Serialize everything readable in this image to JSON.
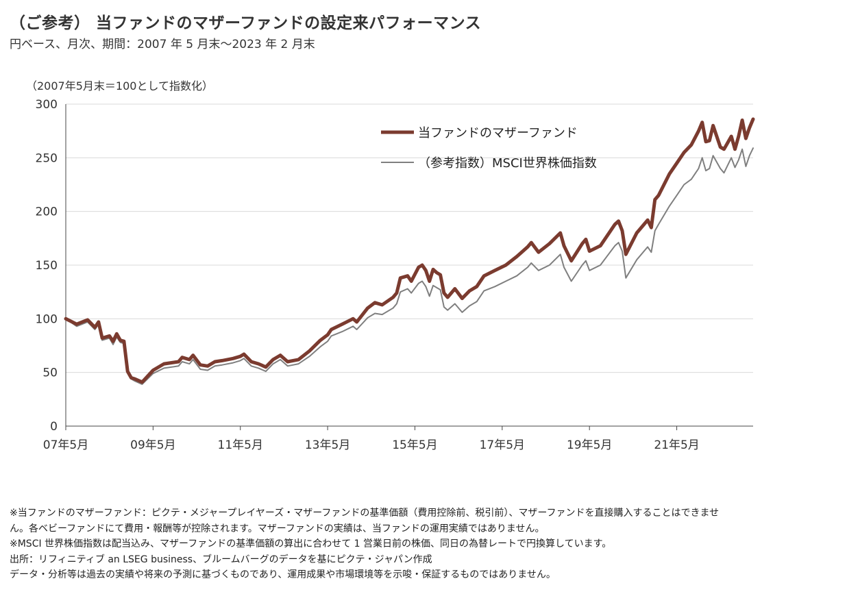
{
  "header": {
    "title": "（ご参考） 当ファンドのマザーファンドの設定来パフォーマンス",
    "subtitle": "円ベース、月次、期間：2007 年 5 月末～2023 年 2 月末"
  },
  "chart_data": {
    "type": "line",
    "unit_label": "（2007年5月末＝100として指数化）",
    "ylim": [
      0,
      300
    ],
    "y_ticks": [
      "0",
      "50",
      "100",
      "150",
      "200",
      "250",
      "300"
    ],
    "x_range": [
      "2007-05",
      "2023-02"
    ],
    "x_ticks": [
      {
        "label": "07年5月",
        "date": "2007-05"
      },
      {
        "label": "09年5月",
        "date": "2009-05"
      },
      {
        "label": "11年5月",
        "date": "2011-05"
      },
      {
        "label": "13年5月",
        "date": "2013-05"
      },
      {
        "label": "15年5月",
        "date": "2015-05"
      },
      {
        "label": "17年5月",
        "date": "2017-05"
      },
      {
        "label": "19年5月",
        "date": "2019-05"
      },
      {
        "label": "21年5月",
        "date": "2021-05"
      }
    ],
    "grid": {
      "horizontal": true,
      "vertical": false
    },
    "legend_position": "top-right",
    "series": [
      {
        "name": "当ファンドのマザーファンド",
        "color": "#7b3b2f",
        "points": [
          [
            "2007-05",
            100
          ],
          [
            "2007-08",
            95
          ],
          [
            "2007-11",
            99
          ],
          [
            "2008-01",
            92
          ],
          [
            "2008-02",
            97
          ],
          [
            "2008-03",
            82
          ],
          [
            "2008-05",
            84
          ],
          [
            "2008-06",
            79
          ],
          [
            "2008-07",
            86
          ],
          [
            "2008-08",
            80
          ],
          [
            "2008-09",
            79
          ],
          [
            "2008-10",
            51
          ],
          [
            "2008-11",
            45
          ],
          [
            "2008-12",
            44
          ],
          [
            "2009-02",
            41
          ],
          [
            "2009-05",
            52
          ],
          [
            "2009-08",
            58
          ],
          [
            "2009-12",
            60
          ],
          [
            "2010-01",
            64
          ],
          [
            "2010-03",
            62
          ],
          [
            "2010-04",
            66
          ],
          [
            "2010-06",
            57
          ],
          [
            "2010-08",
            56
          ],
          [
            "2010-10",
            60
          ],
          [
            "2010-12",
            61
          ],
          [
            "2011-03",
            63
          ],
          [
            "2011-05",
            65
          ],
          [
            "2011-06",
            67
          ],
          [
            "2011-08",
            60
          ],
          [
            "2011-10",
            58
          ],
          [
            "2011-12",
            55
          ],
          [
            "2012-02",
            62
          ],
          [
            "2012-04",
            66
          ],
          [
            "2012-06",
            60
          ],
          [
            "2012-09",
            62
          ],
          [
            "2012-12",
            70
          ],
          [
            "2013-03",
            80
          ],
          [
            "2013-05",
            85
          ],
          [
            "2013-06",
            90
          ],
          [
            "2013-09",
            95
          ],
          [
            "2013-12",
            100
          ],
          [
            "2014-01",
            97
          ],
          [
            "2014-04",
            110
          ],
          [
            "2014-06",
            115
          ],
          [
            "2014-08",
            113
          ],
          [
            "2014-11",
            120
          ],
          [
            "2014-12",
            124
          ],
          [
            "2015-01",
            138
          ],
          [
            "2015-03",
            140
          ],
          [
            "2015-04",
            135
          ],
          [
            "2015-06",
            148
          ],
          [
            "2015-07",
            150
          ],
          [
            "2015-08",
            145
          ],
          [
            "2015-09",
            135
          ],
          [
            "2015-10",
            146
          ],
          [
            "2015-11",
            143
          ],
          [
            "2015-12",
            141
          ],
          [
            "2016-01",
            124
          ],
          [
            "2016-02",
            120
          ],
          [
            "2016-04",
            128
          ],
          [
            "2016-06",
            119
          ],
          [
            "2016-08",
            126
          ],
          [
            "2016-10",
            130
          ],
          [
            "2016-12",
            140
          ],
          [
            "2017-03",
            145
          ],
          [
            "2017-06",
            150
          ],
          [
            "2017-09",
            158
          ],
          [
            "2017-12",
            167
          ],
          [
            "2018-01",
            171
          ],
          [
            "2018-03",
            162
          ],
          [
            "2018-06",
            170
          ],
          [
            "2018-09",
            180
          ],
          [
            "2018-10",
            168
          ],
          [
            "2018-12",
            154
          ],
          [
            "2019-03",
            170
          ],
          [
            "2019-04",
            174
          ],
          [
            "2019-05",
            163
          ],
          [
            "2019-08",
            168
          ],
          [
            "2019-12",
            188
          ],
          [
            "2020-01",
            191
          ],
          [
            "2020-02",
            182
          ],
          [
            "2020-03",
            160
          ],
          [
            "2020-06",
            180
          ],
          [
            "2020-09",
            192
          ],
          [
            "2020-10",
            185
          ],
          [
            "2020-11",
            211
          ],
          [
            "2020-12",
            215
          ],
          [
            "2021-03",
            235
          ],
          [
            "2021-05",
            245
          ],
          [
            "2021-07",
            255
          ],
          [
            "2021-09",
            262
          ],
          [
            "2021-11",
            275
          ],
          [
            "2021-12",
            283
          ],
          [
            "2022-01",
            265
          ],
          [
            "2022-02",
            266
          ],
          [
            "2022-03",
            280
          ],
          [
            "2022-05",
            260
          ],
          [
            "2022-06",
            258
          ],
          [
            "2022-08",
            270
          ],
          [
            "2022-09",
            258
          ],
          [
            "2022-10",
            270
          ],
          [
            "2022-11",
            285
          ],
          [
            "2022-12",
            268
          ],
          [
            "2023-01",
            278
          ],
          [
            "2023-02",
            286
          ]
        ]
      },
      {
        "name": "（参考指数）MSCI世界株価指数",
        "color": "#7f7f7f",
        "points": [
          [
            "2007-05",
            100
          ],
          [
            "2007-08",
            93
          ],
          [
            "2007-11",
            97
          ],
          [
            "2008-01",
            90
          ],
          [
            "2008-02",
            95
          ],
          [
            "2008-03",
            80
          ],
          [
            "2008-05",
            82
          ],
          [
            "2008-06",
            76
          ],
          [
            "2008-07",
            83
          ],
          [
            "2008-08",
            78
          ],
          [
            "2008-09",
            77
          ],
          [
            "2008-10",
            50
          ],
          [
            "2008-11",
            44
          ],
          [
            "2008-12",
            42
          ],
          [
            "2009-02",
            39
          ],
          [
            "2009-05",
            49
          ],
          [
            "2009-08",
            54
          ],
          [
            "2009-12",
            56
          ],
          [
            "2010-01",
            60
          ],
          [
            "2010-03",
            58
          ],
          [
            "2010-04",
            62
          ],
          [
            "2010-06",
            53
          ],
          [
            "2010-08",
            52
          ],
          [
            "2010-10",
            56
          ],
          [
            "2010-12",
            57
          ],
          [
            "2011-03",
            59
          ],
          [
            "2011-05",
            61
          ],
          [
            "2011-06",
            63
          ],
          [
            "2011-08",
            56
          ],
          [
            "2011-10",
            54
          ],
          [
            "2011-12",
            51
          ],
          [
            "2012-02",
            58
          ],
          [
            "2012-04",
            62
          ],
          [
            "2012-06",
            56
          ],
          [
            "2012-09",
            58
          ],
          [
            "2012-12",
            65
          ],
          [
            "2013-03",
            74
          ],
          [
            "2013-05",
            79
          ],
          [
            "2013-06",
            84
          ],
          [
            "2013-09",
            88
          ],
          [
            "2013-12",
            93
          ],
          [
            "2014-01",
            90
          ],
          [
            "2014-04",
            101
          ],
          [
            "2014-06",
            105
          ],
          [
            "2014-08",
            104
          ],
          [
            "2014-11",
            110
          ],
          [
            "2014-12",
            114
          ],
          [
            "2015-01",
            125
          ],
          [
            "2015-03",
            128
          ],
          [
            "2015-04",
            124
          ],
          [
            "2015-06",
            133
          ],
          [
            "2015-07",
            135
          ],
          [
            "2015-08",
            130
          ],
          [
            "2015-09",
            121
          ],
          [
            "2015-10",
            131
          ],
          [
            "2015-11",
            129
          ],
          [
            "2015-12",
            127
          ],
          [
            "2016-01",
            111
          ],
          [
            "2016-02",
            108
          ],
          [
            "2016-04",
            114
          ],
          [
            "2016-06",
            106
          ],
          [
            "2016-08",
            112
          ],
          [
            "2016-10",
            116
          ],
          [
            "2016-12",
            126
          ],
          [
            "2017-03",
            130
          ],
          [
            "2017-06",
            135
          ],
          [
            "2017-09",
            140
          ],
          [
            "2017-12",
            148
          ],
          [
            "2018-01",
            152
          ],
          [
            "2018-03",
            145
          ],
          [
            "2018-06",
            150
          ],
          [
            "2018-09",
            160
          ],
          [
            "2018-10",
            148
          ],
          [
            "2018-12",
            135
          ],
          [
            "2019-03",
            150
          ],
          [
            "2019-04",
            154
          ],
          [
            "2019-05",
            145
          ],
          [
            "2019-08",
            150
          ],
          [
            "2019-12",
            168
          ],
          [
            "2020-01",
            171
          ],
          [
            "2020-02",
            163
          ],
          [
            "2020-03",
            138
          ],
          [
            "2020-06",
            155
          ],
          [
            "2020-09",
            167
          ],
          [
            "2020-10",
            162
          ],
          [
            "2020-11",
            182
          ],
          [
            "2020-12",
            188
          ],
          [
            "2021-03",
            205
          ],
          [
            "2021-05",
            215
          ],
          [
            "2021-07",
            225
          ],
          [
            "2021-09",
            230
          ],
          [
            "2021-11",
            240
          ],
          [
            "2021-12",
            250
          ],
          [
            "2022-01",
            238
          ],
          [
            "2022-02",
            240
          ],
          [
            "2022-03",
            252
          ],
          [
            "2022-05",
            240
          ],
          [
            "2022-06",
            236
          ],
          [
            "2022-08",
            250
          ],
          [
            "2022-09",
            241
          ],
          [
            "2022-10",
            248
          ],
          [
            "2022-11",
            258
          ],
          [
            "2022-12",
            242
          ],
          [
            "2023-01",
            252
          ],
          [
            "2023-02",
            259
          ]
        ]
      }
    ]
  },
  "notes": [
    "※当ファンドのマザーファンド：ピクテ・メジャープレイヤーズ・マザーファンドの基準価額（費用控除前、税引前）、マザーファンドを直接購入することはできませ",
    "ん。各ベビーファンドにて費用・報酬等が控除されます。マザーファンドの実績は、当ファンドの運用実績ではありません。",
    "※MSCI 世界株価指数は配当込み、マザーファンドの基準価額の算出に合わせて 1 営業日前の株価、同日の為替レートで円換算しています。",
    "出所：リフィニティブ an LSEG business、ブルームバーグのデータを基にピクテ・ジャパン作成",
    "データ・分析等は過去の実績や将来の予測に基づくものであり、運用成果や市場環境等を示唆・保証するものではありません。"
  ]
}
